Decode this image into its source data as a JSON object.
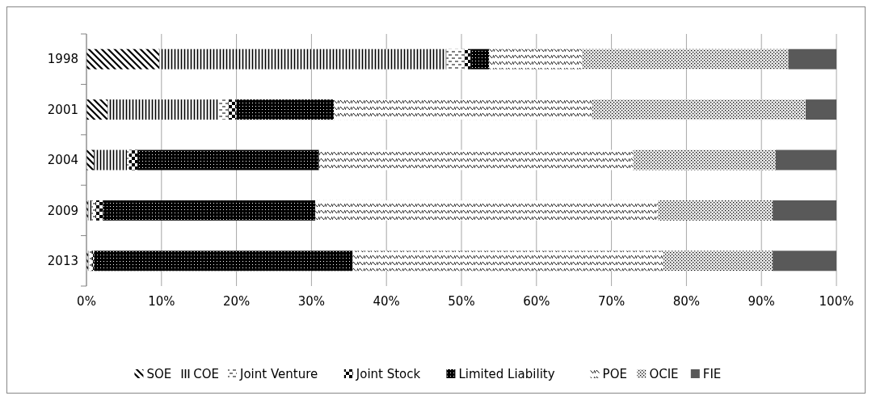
{
  "chart_data": {
    "type": "bar",
    "orientation": "horizontal",
    "stacked": true,
    "categories": [
      "1998",
      "2001",
      "2004",
      "2009",
      "2013"
    ],
    "series": [
      {
        "name": "SOE",
        "color": "#000000",
        "values": [
          9.7,
          2.8,
          1.0,
          0.2,
          0.2
        ]
      },
      {
        "name": "COE",
        "color": "#000000",
        "values": [
          38.3,
          14.9,
          4.4,
          0.5,
          0.2
        ]
      },
      {
        "name": "Joint Venture",
        "color": "#000000",
        "values": [
          2.4,
          1.2,
          0.3,
          0.5,
          0.3
        ]
      },
      {
        "name": "Joint Stock",
        "color": "#000000",
        "values": [
          0.8,
          1.1,
          1.1,
          1.0,
          0.3
        ]
      },
      {
        "name": "Limited Liability",
        "color": "#000000",
        "values": [
          2.5,
          13.0,
          24.2,
          28.3,
          34.5
        ]
      },
      {
        "name": "POE",
        "color": "#000000",
        "values": [
          12.4,
          34.4,
          41.9,
          45.7,
          41.4
        ]
      },
      {
        "name": "OCIE",
        "color": "#000000",
        "values": [
          27.5,
          28.5,
          19.0,
          15.3,
          14.6
        ]
      },
      {
        "name": "FIE",
        "color": "#595959",
        "values": [
          6.4,
          4.1,
          8.1,
          8.5,
          8.5
        ]
      }
    ],
    "xlim": [
      0,
      100
    ],
    "xticks": [
      {
        "value": 0,
        "label": "0%"
      },
      {
        "value": 10,
        "label": "10%"
      },
      {
        "value": 20,
        "label": "20%"
      },
      {
        "value": 30,
        "label": "30%"
      },
      {
        "value": 40,
        "label": "40%"
      },
      {
        "value": 50,
        "label": "50%"
      },
      {
        "value": 60,
        "label": "60%"
      },
      {
        "value": 70,
        "label": "70%"
      },
      {
        "value": 80,
        "label": "80%"
      },
      {
        "value": 90,
        "label": "90%"
      },
      {
        "value": 100,
        "label": "100%"
      }
    ],
    "grid": "x",
    "legend": "bottom"
  }
}
